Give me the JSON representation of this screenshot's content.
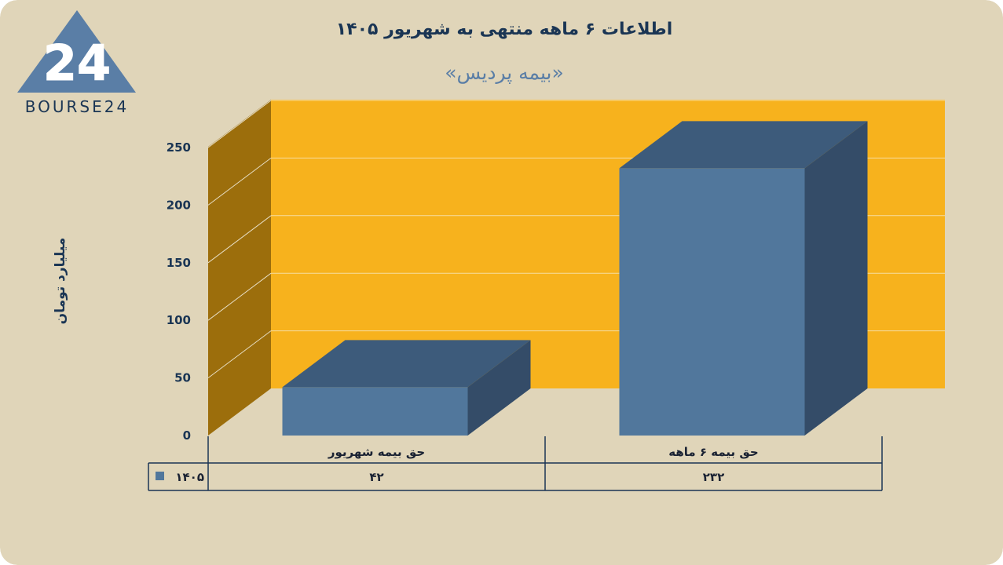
{
  "title": "اطلاعات ۶ ماهه منتهی به شهریور ۱۴۰۵",
  "subtitle": "«بیمه پردیس»",
  "logo": {
    "text": "BOURSE24",
    "mark": "24"
  },
  "colors": {
    "background": "#e0d5b9",
    "back_wall": "#f7b21d",
    "side_wall": "#9c6e0c",
    "bar_front": "#51779c",
    "bar_top": "#3d5b7b",
    "bar_side": "#344c68",
    "text_dark": "#1a3554",
    "subtitle": "#5a7ea6",
    "logo": "#5a7ea6"
  },
  "chart_data": {
    "type": "bar",
    "categories": [
      "حق بیمه شهریور",
      "حق بیمه ۶  ماهه"
    ],
    "series": [
      {
        "name": "۱۴۰۵",
        "values": [
          42,
          232
        ]
      }
    ],
    "value_labels": [
      "۴۲",
      "۲۳۲"
    ],
    "ylabel": "میلیارد تومان",
    "yticks": [
      0,
      50,
      100,
      150,
      200,
      250
    ],
    "ytick_labels": [
      "0",
      "50",
      "100",
      "150",
      "200",
      "250"
    ],
    "ylim": [
      0,
      250
    ],
    "grid": true,
    "legend": "table-left"
  }
}
